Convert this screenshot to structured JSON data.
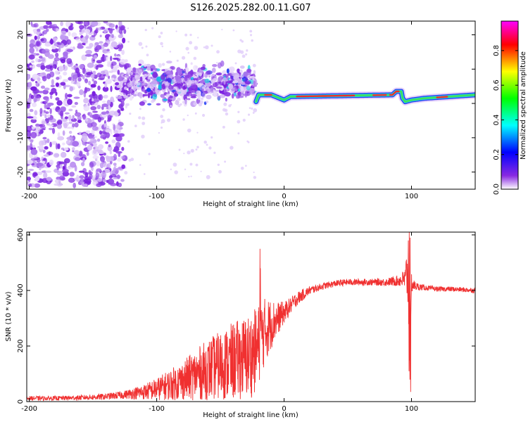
{
  "title": "S126.2025.282.00.11.G07",
  "chart_data": [
    {
      "type": "heatmap",
      "title": "S126.2025.282.00.11.G07",
      "xlabel": "Height of straight line (km)",
      "ylabel": "Frequency (Hz)",
      "xlim": [
        -202,
        150
      ],
      "ylim": [
        -25,
        24
      ],
      "xticks": [
        -200,
        -100,
        0,
        100
      ],
      "xtick_labels": [
        "-200",
        "-100",
        "0",
        "100"
      ],
      "yticks": [
        20,
        10,
        0,
        -10,
        -20
      ],
      "ytick_labels": [
        "20",
        "10",
        "0",
        "-10",
        "-20"
      ],
      "regions": [
        {
          "name": "noise",
          "x": [
            -202,
            -125
          ],
          "y_spread": 24,
          "density": "high"
        },
        {
          "name": "transition",
          "x": [
            -125,
            -22
          ],
          "y_center": 6,
          "y_spread": 9,
          "density": "medium"
        },
        {
          "name": "carrier",
          "x": [
            -22,
            150
          ],
          "y_profile": [
            [
              -22,
              0.5
            ],
            [
              -20,
              2.5
            ],
            [
              -10,
              2.5
            ],
            [
              0,
              1.0
            ],
            [
              5,
              2.0
            ],
            [
              85,
              2.5
            ],
            [
              88,
              3.5
            ],
            [
              92,
              3.5
            ],
            [
              93,
              1.5
            ],
            [
              95,
              0.5
            ],
            [
              100,
              1.0
            ],
            [
              110,
              1.5
            ],
            [
              150,
              2.5
            ]
          ],
          "peak_amplitude": 0.95
        }
      ],
      "colorbar": {
        "label": "Normalized spectral amplitude",
        "range": [
          0,
          0.97
        ],
        "ticks": [
          0.0,
          0.2,
          0.4,
          0.6,
          0.8
        ],
        "tick_labels": [
          "0.0",
          "0.2",
          "0.4",
          "0.6",
          "0.8"
        ],
        "colors": [
          "#ffffff",
          "#8a2be2",
          "#0000ff",
          "#00ffff",
          "#00ff00",
          "#ffff00",
          "#ff0000",
          "#ff00ff"
        ]
      }
    },
    {
      "type": "line",
      "xlabel": "Height of straight line (km)",
      "ylabel": "SNR (10 * v/v)",
      "xlim": [
        -202,
        150
      ],
      "ylim": [
        0,
        610
      ],
      "xticks": [
        -200,
        -100,
        0,
        100
      ],
      "xtick_labels": [
        "-200",
        "-100",
        "0",
        "100"
      ],
      "yticks": [
        0,
        200,
        400,
        600
      ],
      "ytick_labels": [
        "0",
        "200",
        "400",
        "600"
      ],
      "line_color": "#f03030",
      "series": [
        {
          "name": "SNR",
          "x": [
            -202,
            -180,
            -160,
            -140,
            -125,
            -110,
            -100,
            -90,
            -80,
            -70,
            -60,
            -50,
            -40,
            -30,
            -25,
            -20,
            -18,
            -15,
            -10,
            -5,
            0,
            5,
            10,
            20,
            30,
            40,
            50,
            60,
            70,
            80,
            90,
            95,
            97,
            98,
            99,
            100,
            101,
            103,
            110,
            120,
            130,
            140,
            150
          ],
          "mean": [
            12,
            12,
            14,
            18,
            25,
            35,
            45,
            60,
            75,
            95,
            115,
            130,
            145,
            160,
            170,
            200,
            230,
            255,
            280,
            300,
            320,
            345,
            370,
            400,
            415,
            425,
            430,
            430,
            430,
            430,
            435,
            440,
            470,
            250,
            100,
            430,
            420,
            415,
            410,
            405,
            405,
            403,
            400
          ],
          "noise": [
            8,
            8,
            9,
            11,
            15,
            28,
            40,
            55,
            70,
            90,
            110,
            125,
            140,
            150,
            155,
            150,
            140,
            120,
            90,
            60,
            40,
            30,
            25,
            15,
            12,
            12,
            12,
            12,
            12,
            14,
            20,
            40,
            130,
            150,
            60,
            40,
            25,
            15,
            10,
            9,
            9,
            9,
            9
          ],
          "spikes": [
            {
              "x": -19,
              "y": 550
            },
            {
              "x": -18.5,
              "y": 480
            },
            {
              "x": 97.5,
              "y": 580
            },
            {
              "x": 98.3,
              "y": 610
            },
            {
              "x": 99,
              "y": 590
            },
            {
              "x": 99.4,
              "y": 35
            }
          ]
        }
      ]
    }
  ]
}
